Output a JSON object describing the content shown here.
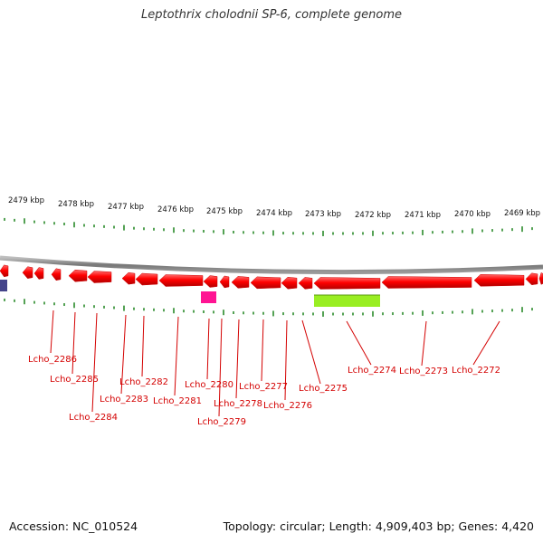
{
  "title": "Leptothrix cholodnii SP-6, complete genome",
  "footer": {
    "accession": "Accession: NC_010524",
    "summary": "Topology: circular; Length: 4,909,403 bp; Genes: 4,420"
  },
  "scale_labels": [
    "2479 kbp",
    "2478 kbp",
    "2477 kbp",
    "2476 kbp",
    "2475 kbp",
    "2474 kbp",
    "2473 kbp",
    "2472 kbp",
    "2471 kbp",
    "2470 kbp",
    "2469 kbp"
  ],
  "gene_labels": [
    "Lcho_2286",
    "Lcho_2285",
    "Lcho_2284",
    "Lcho_2283",
    "Lcho_2282",
    "Lcho_2281",
    "Lcho_2280",
    "Lcho_2279",
    "Lcho_2278",
    "Lcho_2277",
    "Lcho_2276",
    "Lcho_2275",
    "Lcho_2274",
    "Lcho_2273",
    "Lcho_2272"
  ],
  "colors": {
    "gene": "#ff0000",
    "backbone": "#888888",
    "tick": "#2a8a2a",
    "label": "#d40000",
    "feature_magenta": "#ff1493",
    "feature_green": "#99ee22",
    "feature_navy": "#44448a"
  }
}
